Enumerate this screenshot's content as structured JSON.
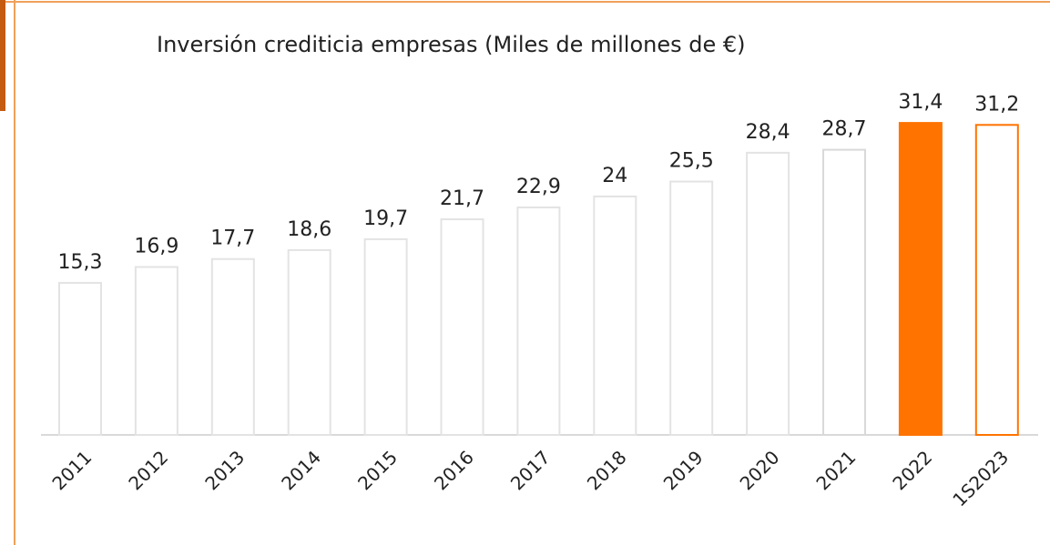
{
  "chart_data": {
    "type": "bar",
    "title": "Inversión crediticia empresas (Miles de millones de €)",
    "categories": [
      "2011",
      "2012",
      "2013",
      "2014",
      "2015",
      "2016",
      "2017",
      "2018",
      "2019",
      "2020",
      "2021",
      "2022",
      "1S2023"
    ],
    "values": [
      15.3,
      16.9,
      17.7,
      18.6,
      19.7,
      21.7,
      22.9,
      24,
      25.5,
      28.4,
      28.7,
      31.4,
      31.2
    ],
    "value_labels": [
      "15,3",
      "16,9",
      "17,7",
      "18,6",
      "19,7",
      "21,7",
      "22,9",
      "24",
      "25,5",
      "28,4",
      "28,7",
      "31,4",
      "31,2"
    ],
    "colors": [
      "#e3e3e3",
      "#e3e3e3",
      "#e3e3e3",
      "#e3e3e3",
      "#e3e3e3",
      "#e3e3e3",
      "#e3e3e3",
      "#e3e3e3",
      "#e3e3e3",
      "#e3e3e3",
      "#d9d9d9",
      "#ff7300",
      "#ff7300"
    ],
    "fill_colors": [
      "#ffffff",
      "#ffffff",
      "#ffffff",
      "#ffffff",
      "#ffffff",
      "#ffffff",
      "#ffffff",
      "#ffffff",
      "#ffffff",
      "#ffffff",
      "#ffffff",
      "#ff7300",
      "#ffffff"
    ]
  }
}
